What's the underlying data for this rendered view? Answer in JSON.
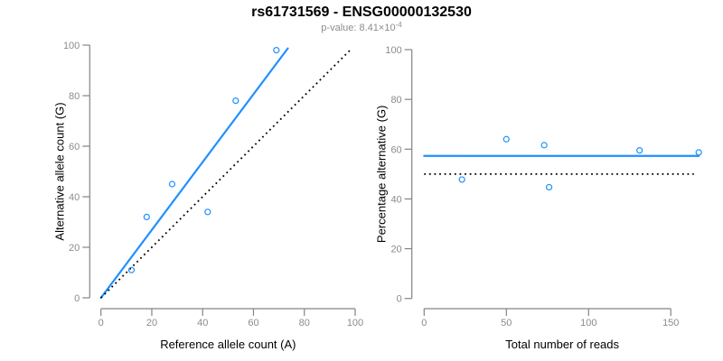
{
  "header": {
    "title": "rs61731569 - ENSG00000132530",
    "subtitle_label": "p-value: ",
    "pvalue_base": "8.41×10",
    "pvalue_exponent": "-4"
  },
  "colors": {
    "accent_blue": "#1E90FF",
    "line_black": "#000000",
    "axis_gray": "#848484",
    "tick_label_gray": "#8c8c8c",
    "axis_title_black": "#000000",
    "subtitle_gray": "#8c8c8c"
  },
  "chart_data": [
    {
      "type": "scatter",
      "panel": "left",
      "xlabel": "Reference allele count (A)",
      "ylabel": "Alternative allele count (G)",
      "xlim": [
        0,
        100
      ],
      "ylim": [
        0,
        100
      ],
      "xticks": [
        0,
        20,
        40,
        60,
        80,
        100
      ],
      "yticks": [
        0,
        20,
        40,
        60,
        80,
        100
      ],
      "grid": false,
      "legend": "none",
      "point_style": "open-circle",
      "point_color": "#1E90FF",
      "points": [
        [
          12,
          11
        ],
        [
          18,
          32
        ],
        [
          28,
          45
        ],
        [
          42,
          34
        ],
        [
          53,
          78
        ],
        [
          69,
          98
        ]
      ],
      "lines": [
        {
          "name": "fit-line",
          "style": "solid",
          "color": "#1E90FF",
          "x1": 0,
          "y1": 0,
          "x2": 73.5,
          "y2": 98.7
        },
        {
          "name": "identity-line",
          "style": "dotted",
          "color": "#000000",
          "x1": 0,
          "y1": 0,
          "x2": 98,
          "y2": 98
        }
      ]
    },
    {
      "type": "scatter",
      "panel": "right",
      "xlabel": "Total number of reads",
      "ylabel": "Percentage alternative (G)",
      "xlim": [
        0,
        168
      ],
      "ylim": [
        0,
        100
      ],
      "xticks": [
        0,
        50,
        100,
        150
      ],
      "yticks": [
        0,
        20,
        40,
        60,
        80,
        100
      ],
      "grid": false,
      "legend": "none",
      "point_style": "open-circle",
      "point_color": "#1E90FF",
      "points": [
        [
          23,
          47.8
        ],
        [
          50,
          64
        ],
        [
          73,
          61.6
        ],
        [
          76,
          44.7
        ],
        [
          131,
          59.5
        ],
        [
          167,
          58.7
        ]
      ],
      "lines": [
        {
          "name": "mean-percentage-line",
          "style": "solid",
          "color": "#1E90FF",
          "x1": 0,
          "y1": 57.3,
          "x2": 167,
          "y2": 57.3
        },
        {
          "name": "fifty-percent-line",
          "style": "dotted",
          "color": "#000000",
          "x1": 0,
          "y1": 50,
          "x2": 164,
          "y2": 50
        }
      ]
    }
  ]
}
